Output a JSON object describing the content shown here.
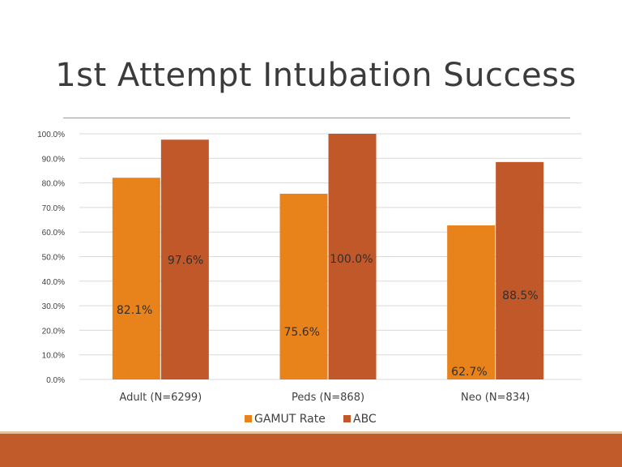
{
  "slide": {
    "title": "1st Attempt Intubation Success"
  },
  "colors": {
    "gamut": "#e8821a",
    "abc": "#c0582a",
    "grid": "#d9d9d9",
    "text": "#404040",
    "footer": "#c15b29"
  },
  "chart_data": {
    "type": "bar",
    "title": "",
    "xlabel": "",
    "ylabel": "",
    "categories": [
      "Adult (N=6299)",
      "Peds (N=868)",
      "Neo (N=834)"
    ],
    "series": [
      {
        "name": "GAMUT Rate",
        "values": [
          82.1,
          75.6,
          62.7
        ],
        "labels": [
          "82.1%",
          "75.6%",
          "62.7%"
        ]
      },
      {
        "name": "ABC",
        "values": [
          97.6,
          100.0,
          88.5
        ],
        "labels": [
          "97.6%",
          "100.0%",
          "88.5%"
        ]
      }
    ],
    "ylim": [
      0,
      100
    ],
    "yticks": [
      0,
      10,
      20,
      30,
      40,
      50,
      60,
      70,
      80,
      90,
      100
    ],
    "ytick_labels": [
      "0.0%",
      "10.0%",
      "20.0%",
      "30.0%",
      "40.0%",
      "50.0%",
      "60.0%",
      "70.0%",
      "80.0%",
      "90.0%",
      "100.0%"
    ],
    "grid": true,
    "legend_position": "bottom"
  }
}
